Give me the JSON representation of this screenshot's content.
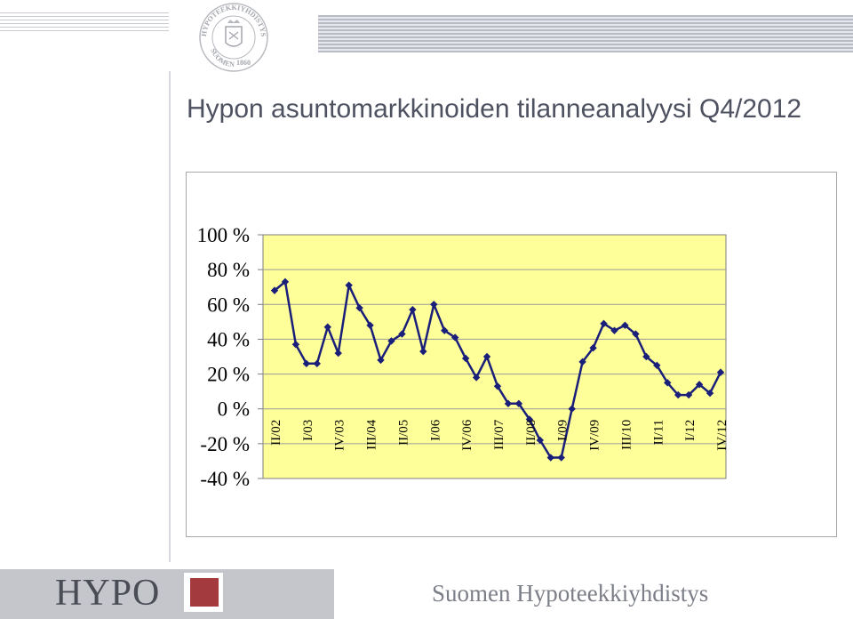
{
  "header": {
    "seal_text_top": "HYPOTEEKKIYHDISTYS",
    "seal_text_bottom": "SUOMEN",
    "seal_year": "1860"
  },
  "title": "Hypon asuntomarkkinoiden tilanneanalyysi Q4/2012",
  "footer": {
    "logo": "HYPO",
    "organization": "Suomen Hypoteekkiyhdistys",
    "accent_color": "#a33a3d"
  },
  "chart_data": {
    "type": "line",
    "title": "",
    "xlabel": "",
    "ylabel": "",
    "ylim": [
      -40,
      100
    ],
    "y_ticks": [
      "100 %",
      "80 %",
      "60 %",
      "40 %",
      "20 %",
      "0 %",
      "-20 %",
      "-40 %"
    ],
    "x_tick_labels": [
      "II/02",
      "I/03",
      "IV/03",
      "III/04",
      "II/05",
      "I/06",
      "IV/06",
      "III/07",
      "II/08",
      "I/09",
      "IV/09",
      "III/10",
      "II/11",
      "I/12",
      "IV/12"
    ],
    "x": [
      "II/02",
      "III/02",
      "IV/02",
      "I/03",
      "II/03",
      "III/03",
      "IV/03",
      "I/04",
      "II/04",
      "III/04",
      "IV/04",
      "I/05",
      "II/05",
      "III/05",
      "IV/05",
      "I/06",
      "II/06",
      "III/06",
      "IV/06",
      "I/07",
      "II/07",
      "III/07",
      "IV/07",
      "I/08",
      "II/08",
      "III/08",
      "IV/08",
      "I/09",
      "II/09",
      "III/09",
      "IV/09",
      "I/10",
      "II/10",
      "III/10",
      "IV/10",
      "I/11",
      "II/11",
      "III/11",
      "IV/11",
      "I/12",
      "II/12",
      "III/12",
      "IV/12"
    ],
    "series": [
      {
        "values": [
          68,
          73,
          37,
          26,
          26,
          47,
          32,
          71,
          58,
          48,
          28,
          39,
          43,
          57,
          33,
          60,
          45,
          41,
          29,
          18,
          30,
          13,
          3,
          3,
          -6,
          -18,
          -28,
          -28,
          0,
          27,
          35,
          49,
          45,
          48,
          43,
          30,
          25,
          15,
          8,
          8,
          14,
          9,
          21
        ]
      }
    ],
    "colors": {
      "line": "#1a1f7a",
      "plot_background": "#ffff99",
      "gridline": "#9a9a9a"
    },
    "grid": true,
    "legend": "none"
  }
}
